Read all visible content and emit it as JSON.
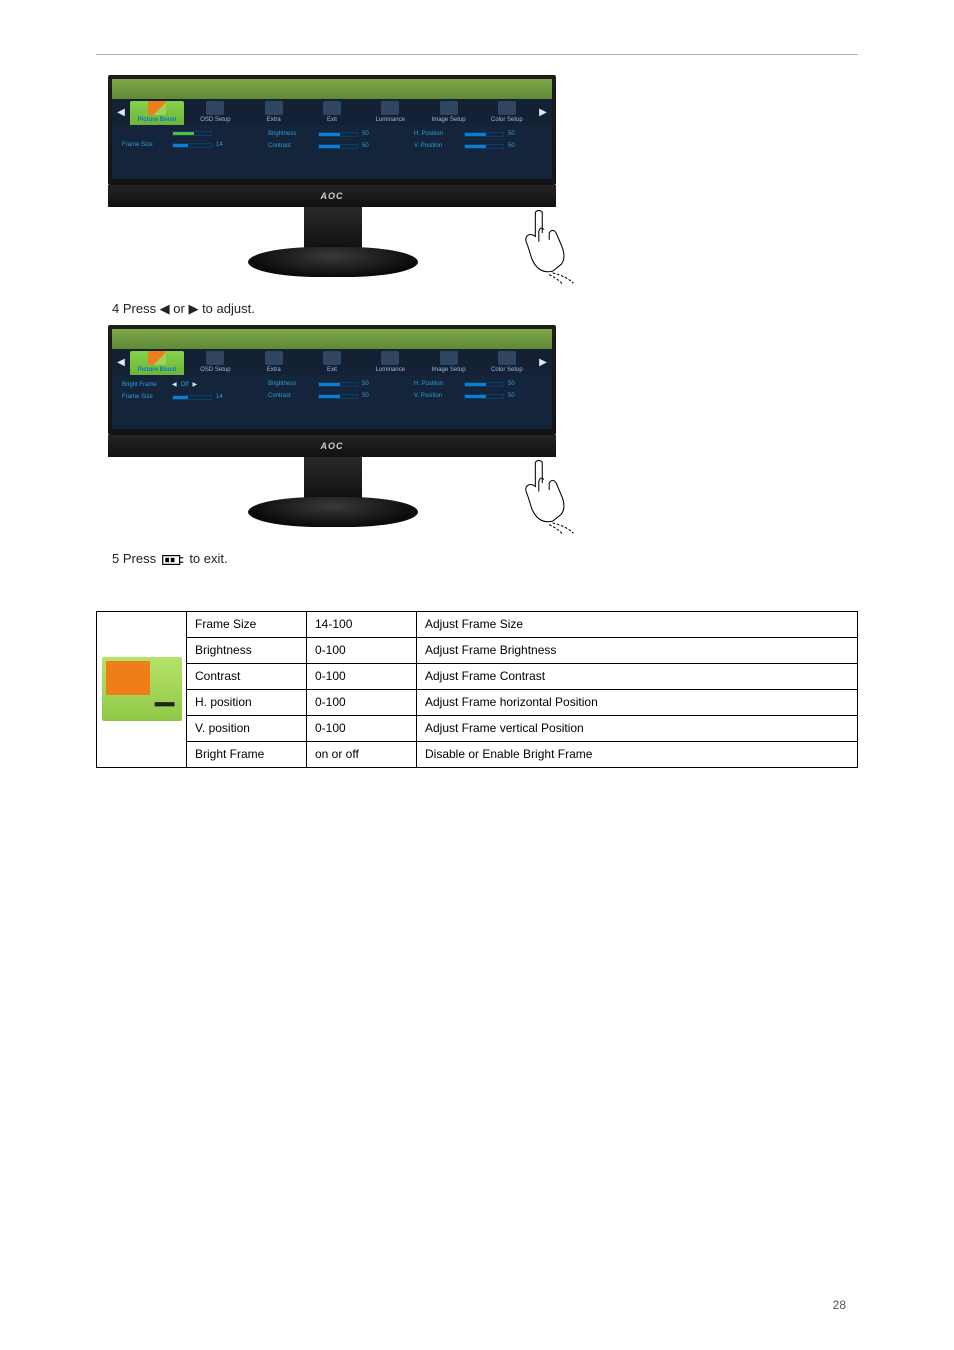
{
  "page_number": 28,
  "step4": "4 Press ◀ or ▶ to adjust.",
  "step5_before": "5 Press ",
  "step5_after": " to exit.",
  "osd": {
    "tabs": [
      {
        "label": "Picture Boost",
        "selected": true,
        "icon": "picture-boost"
      },
      {
        "label": "OSD Setup",
        "selected": false,
        "icon": "osd-setup"
      },
      {
        "label": "Extra",
        "selected": false,
        "icon": "extra"
      },
      {
        "label": "Exit",
        "selected": false,
        "icon": "exit"
      },
      {
        "label": "Luminance",
        "selected": false,
        "icon": "luminance"
      },
      {
        "label": "Image Setup",
        "selected": false,
        "icon": "image-setup"
      },
      {
        "label": "Color Setup",
        "selected": false,
        "icon": "color-setup"
      }
    ],
    "logo": "AOC",
    "variant_a": {
      "col1": [
        {
          "label": "",
          "type": "greenbar",
          "fill": 55
        },
        {
          "label": "Frame Size",
          "type": "bluebar",
          "fill": 40,
          "value": "14"
        }
      ],
      "col2": [
        {
          "label": "Brightness",
          "type": "bluebar",
          "fill": 55,
          "value": "50"
        },
        {
          "label": "Contrast",
          "type": "bluebar",
          "fill": 55,
          "value": "50"
        }
      ],
      "col3": [
        {
          "label": "H. Position",
          "type": "bluebar",
          "fill": 55,
          "value": "50"
        },
        {
          "label": "V. Position",
          "type": "bluebar",
          "fill": 55,
          "value": "50"
        }
      ]
    },
    "variant_b": {
      "col1": [
        {
          "label": "Bright Frame",
          "type": "toggle",
          "mid": "Off"
        },
        {
          "label": "Frame Size",
          "type": "bluebar",
          "fill": 40,
          "value": "14"
        }
      ],
      "col2": [
        {
          "label": "Brightness",
          "type": "bluebar",
          "fill": 55,
          "value": "50"
        },
        {
          "label": "Contrast",
          "type": "bluebar",
          "fill": 55,
          "value": "50"
        }
      ],
      "col3": [
        {
          "label": "H. Position",
          "type": "bluebar",
          "fill": 55,
          "value": "50"
        },
        {
          "label": "V. Position",
          "type": "bluebar",
          "fill": 55,
          "value": "50"
        }
      ]
    }
  },
  "table": {
    "rows": [
      {
        "name": "Frame Size",
        "range": "14-100",
        "desc": "Adjust Frame Size"
      },
      {
        "name": "Brightness",
        "range": "0-100",
        "desc": "Adjust Frame Brightness"
      },
      {
        "name": "Contrast",
        "range": "0-100",
        "desc": "Adjust Frame Contrast"
      },
      {
        "name": "H. position",
        "range": "0-100",
        "desc": "Adjust Frame horizontal Position"
      },
      {
        "name": "V. position",
        "range": "0-100",
        "desc": "Adjust Frame vertical Position"
      },
      {
        "name": "Bright Frame",
        "range": "on or off",
        "desc": "Disable or Enable Bright Frame"
      }
    ]
  },
  "monitor": {
    "bezel_color": "#1a1a1a",
    "screen_bg": "#14243a",
    "accent_green": "#86d24a",
    "accent_orange": "#ef7d1a",
    "slider_blue": "#0a7ed6",
    "text_cyan": "#2ea0d6"
  }
}
